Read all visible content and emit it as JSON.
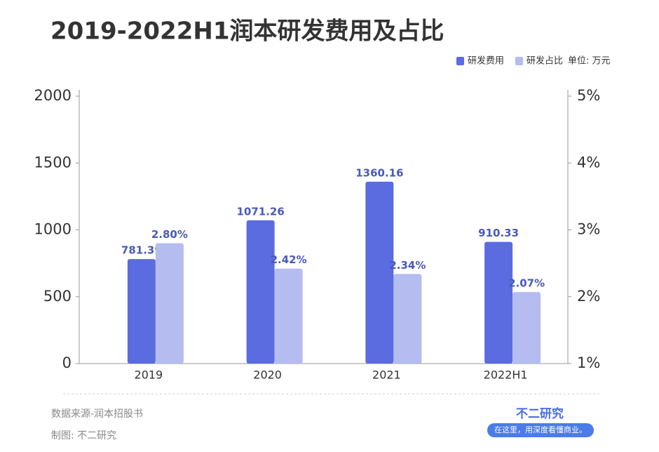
{
  "chart_data": {
    "type": "bar",
    "title": "2019-2022H1润本研发费用及占比",
    "unit_note": "单位: 万元",
    "categories": [
      "2019",
      "2020",
      "2021",
      "2022H1"
    ],
    "series": [
      {
        "name": "研发费用",
        "color": "#5b6be0",
        "values": [
          781.39,
          1071.26,
          1360.16,
          910.33
        ]
      },
      {
        "name": "研发占比",
        "color": "#b4bcf0",
        "axis": "y2",
        "values": [
          2.8,
          2.42,
          2.34,
          2.07
        ],
        "value_labels": [
          "2.80%",
          "2.42%",
          "2.34%",
          "2.07%"
        ]
      }
    ],
    "ylim": [
      0,
      2000
    ],
    "yticks": [
      0,
      500,
      1000,
      1500,
      2000
    ],
    "y2lim": [
      1,
      5
    ],
    "y2ticks": [
      {
        "value": 1,
        "label": "1%"
      },
      {
        "value": 2,
        "label": "2%"
      },
      {
        "value": 3,
        "label": "3%"
      },
      {
        "value": 4,
        "label": "4%"
      },
      {
        "value": 5,
        "label": "5%"
      }
    ],
    "source": "数据来源-润本招股书",
    "credit": "制图: 不二研究",
    "brand": "不二研究",
    "slogan": "在这里，用深度看懂商业。"
  }
}
